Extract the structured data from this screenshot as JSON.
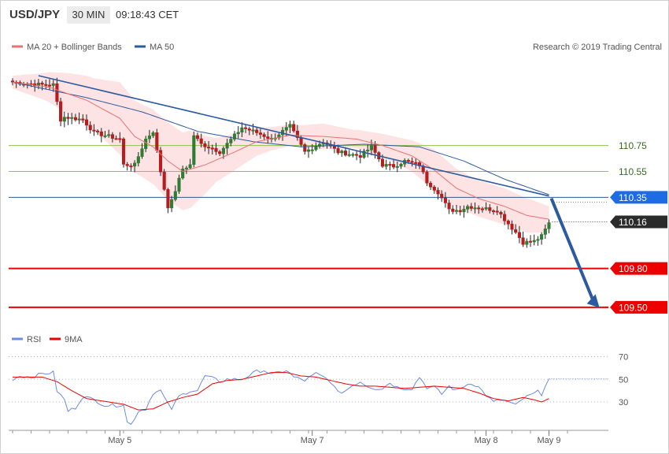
{
  "header": {
    "symbol": "USD/JPY",
    "interval": "30 MIN",
    "time": "09:18:43 CET"
  },
  "legend": {
    "item1": "MA 20 + Bollinger Bands",
    "item2": "MA 50",
    "copyright": "Research © 2019 Trading Central"
  },
  "rsi_legend": {
    "item1": "RSI",
    "item2": "9MA"
  },
  "colors": {
    "bull": "#2e7d32",
    "bear": "#b71c1c",
    "ma20": "#e57373",
    "ma50": "#2c5aa0",
    "band": "#fde3e3",
    "level_red": "#ee0000",
    "level_blue": "#2c5aa0",
    "level_green": "#8bc34a",
    "rsi": "#6b8be0",
    "rsi_ma": "#ee0000"
  },
  "chart_data": [
    {
      "type": "candlestick",
      "x_range_bars": [
        0,
        147
      ],
      "ylim": [
        109.42,
        111.43
      ],
      "x_tick_labels": [
        {
          "label": "May 5",
          "bar": 29
        },
        {
          "label": "May 7",
          "bar": 81
        },
        {
          "label": "May 8",
          "bar": 128
        },
        {
          "label": "May 9",
          "bar": 145
        }
      ],
      "levels": [
        {
          "label": "110.75",
          "value": 110.75,
          "kind": "green"
        },
        {
          "label": "110.55",
          "value": 110.55,
          "kind": "green"
        },
        {
          "label": "110.35",
          "value": 110.35,
          "kind": "blue"
        },
        {
          "label": "110.16",
          "value": 110.16,
          "kind": "current"
        },
        {
          "label": "109.80",
          "value": 109.8,
          "kind": "red"
        },
        {
          "label": "109.50",
          "value": 109.5,
          "kind": "red"
        }
      ],
      "trendline": {
        "from": [
          7,
          111.29
        ],
        "to": [
          145,
          110.36
        ]
      },
      "projection_arrow": {
        "from": [
          145,
          110.36
        ],
        "to": [
          158,
          109.51
        ]
      },
      "close_anchors": [
        [
          0,
          111.24
        ],
        [
          8,
          111.22
        ],
        [
          11,
          111.22
        ],
        [
          13,
          110.95
        ],
        [
          14,
          110.97
        ],
        [
          19,
          110.95
        ],
        [
          22,
          110.85
        ],
        [
          29,
          110.8
        ],
        [
          30,
          110.6
        ],
        [
          33,
          110.6
        ],
        [
          36,
          110.8
        ],
        [
          38,
          110.86
        ],
        [
          40,
          110.55
        ],
        [
          42,
          110.28
        ],
        [
          43,
          110.32
        ],
        [
          46,
          110.57
        ],
        [
          48,
          110.6
        ],
        [
          49,
          110.83
        ],
        [
          51,
          110.76
        ],
        [
          54,
          110.73
        ],
        [
          56,
          110.7
        ],
        [
          62,
          110.89
        ],
        [
          66,
          110.85
        ],
        [
          70,
          110.8
        ],
        [
          75,
          110.9
        ],
        [
          79,
          110.7
        ],
        [
          84,
          110.78
        ],
        [
          88,
          110.7
        ],
        [
          94,
          110.67
        ],
        [
          97,
          110.74
        ],
        [
          100,
          110.6
        ],
        [
          103,
          110.59
        ],
        [
          106,
          110.63
        ],
        [
          110,
          110.6
        ],
        [
          112,
          110.47
        ],
        [
          115,
          110.39
        ],
        [
          118,
          110.25
        ],
        [
          121,
          110.25
        ],
        [
          123,
          110.28
        ],
        [
          126,
          110.27
        ],
        [
          131,
          110.25
        ],
        [
          133,
          110.18
        ],
        [
          136,
          110.08
        ],
        [
          138,
          110.0
        ],
        [
          141,
          110.01
        ],
        [
          143,
          110.05
        ],
        [
          145,
          110.15
        ]
      ],
      "ma20_anchors": [
        [
          0,
          111.24
        ],
        [
          10,
          111.2
        ],
        [
          20,
          111.1
        ],
        [
          29,
          110.96
        ],
        [
          33,
          110.82
        ],
        [
          38,
          110.74
        ],
        [
          42,
          110.63
        ],
        [
          46,
          110.55
        ],
        [
          52,
          110.6
        ],
        [
          60,
          110.7
        ],
        [
          66,
          110.78
        ],
        [
          75,
          110.83
        ],
        [
          84,
          110.82
        ],
        [
          93,
          110.8
        ],
        [
          100,
          110.75
        ],
        [
          108,
          110.67
        ],
        [
          114,
          110.56
        ],
        [
          120,
          110.42
        ],
        [
          126,
          110.34
        ],
        [
          133,
          110.28
        ],
        [
          139,
          110.21
        ],
        [
          145,
          110.18
        ]
      ],
      "ma50_anchors": [
        [
          0,
          111.24
        ],
        [
          20,
          111.12
        ],
        [
          35,
          111.01
        ],
        [
          50,
          110.86
        ],
        [
          65,
          110.78
        ],
        [
          78,
          110.74
        ],
        [
          95,
          110.76
        ],
        [
          110,
          110.74
        ],
        [
          122,
          110.63
        ],
        [
          133,
          110.49
        ],
        [
          145,
          110.37
        ]
      ],
      "band_width_anchors": [
        [
          0,
          0.05
        ],
        [
          8,
          0.1
        ],
        [
          15,
          0.16
        ],
        [
          22,
          0.2
        ],
        [
          29,
          0.28
        ],
        [
          35,
          0.28
        ],
        [
          42,
          0.3
        ],
        [
          48,
          0.3
        ],
        [
          55,
          0.17
        ],
        [
          62,
          0.13
        ],
        [
          70,
          0.09
        ],
        [
          78,
          0.08
        ],
        [
          84,
          0.1
        ],
        [
          92,
          0.07
        ],
        [
          100,
          0.09
        ],
        [
          108,
          0.12
        ],
        [
          114,
          0.16
        ],
        [
          120,
          0.15
        ],
        [
          126,
          0.14
        ],
        [
          133,
          0.14
        ],
        [
          140,
          0.13
        ],
        [
          145,
          0.1
        ]
      ]
    },
    {
      "type": "line",
      "ylim": [
        5,
        78
      ],
      "y_ticks": [
        "70",
        "50",
        "30"
      ],
      "y_tick_values": [
        70,
        50,
        30
      ],
      "series": [
        {
          "name": "RSI",
          "anchors": [
            [
              0,
              50
            ],
            [
              2,
              53
            ],
            [
              5,
              52
            ],
            [
              8,
              55
            ],
            [
              11,
              56
            ],
            [
              12,
              40
            ],
            [
              14,
              32
            ],
            [
              15,
              22
            ],
            [
              17,
              25
            ],
            [
              19,
              35
            ],
            [
              22,
              32
            ],
            [
              25,
              27
            ],
            [
              28,
              27
            ],
            [
              30,
              28
            ],
            [
              31,
              12
            ],
            [
              32,
              10
            ],
            [
              34,
              22
            ],
            [
              36,
              24
            ],
            [
              38,
              38
            ],
            [
              40,
              40
            ],
            [
              42,
              28
            ],
            [
              43,
              24
            ],
            [
              45,
              35
            ],
            [
              48,
              40
            ],
            [
              50,
              40
            ],
            [
              52,
              53
            ],
            [
              54,
              51
            ],
            [
              56,
              48
            ],
            [
              58,
              50
            ],
            [
              62,
              50
            ],
            [
              66,
              57
            ],
            [
              68,
              58
            ],
            [
              70,
              54
            ],
            [
              74,
              58
            ],
            [
              76,
              52
            ],
            [
              79,
              49
            ],
            [
              82,
              55
            ],
            [
              84,
              52
            ],
            [
              86,
              48
            ],
            [
              88,
              38
            ],
            [
              90,
              40
            ],
            [
              92,
              45
            ],
            [
              94,
              48
            ],
            [
              96,
              44
            ],
            [
              98,
              42
            ],
            [
              100,
              42
            ],
            [
              102,
              47
            ],
            [
              104,
              43
            ],
            [
              106,
              42
            ],
            [
              108,
              42
            ],
            [
              110,
              52
            ],
            [
              112,
              43
            ],
            [
              114,
              43
            ],
            [
              116,
              37
            ],
            [
              118,
              44
            ],
            [
              120,
              40
            ],
            [
              122,
              44
            ],
            [
              124,
              47
            ],
            [
              126,
              43
            ],
            [
              128,
              36
            ],
            [
              130,
              30
            ],
            [
              132,
              32
            ],
            [
              134,
              30
            ],
            [
              136,
              27
            ],
            [
              138,
              33
            ],
            [
              140,
              36
            ],
            [
              142,
              39
            ],
            [
              143,
              37
            ],
            [
              144,
              45
            ],
            [
              145,
              50
            ]
          ]
        },
        {
          "name": "9MA",
          "anchors": [
            [
              0,
              52
            ],
            [
              8,
              52
            ],
            [
              12,
              48
            ],
            [
              16,
              40
            ],
            [
              20,
              33
            ],
            [
              26,
              30
            ],
            [
              30,
              28
            ],
            [
              34,
              23
            ],
            [
              38,
              24
            ],
            [
              42,
              30
            ],
            [
              46,
              34
            ],
            [
              50,
              37
            ],
            [
              54,
              46
            ],
            [
              58,
              49
            ],
            [
              62,
              50
            ],
            [
              66,
              53
            ],
            [
              70,
              56
            ],
            [
              74,
              56
            ],
            [
              78,
              53
            ],
            [
              82,
              52
            ],
            [
              86,
              49
            ],
            [
              90,
              46
            ],
            [
              94,
              44
            ],
            [
              98,
              44
            ],
            [
              102,
              43
            ],
            [
              106,
              42
            ],
            [
              110,
              43
            ],
            [
              114,
              44
            ],
            [
              118,
              43
            ],
            [
              122,
              42
            ],
            [
              126,
              38
            ],
            [
              130,
              33
            ],
            [
              134,
              31
            ],
            [
              138,
              34
            ],
            [
              141,
              32
            ],
            [
              143,
              30
            ],
            [
              145,
              33
            ]
          ]
        }
      ]
    }
  ]
}
